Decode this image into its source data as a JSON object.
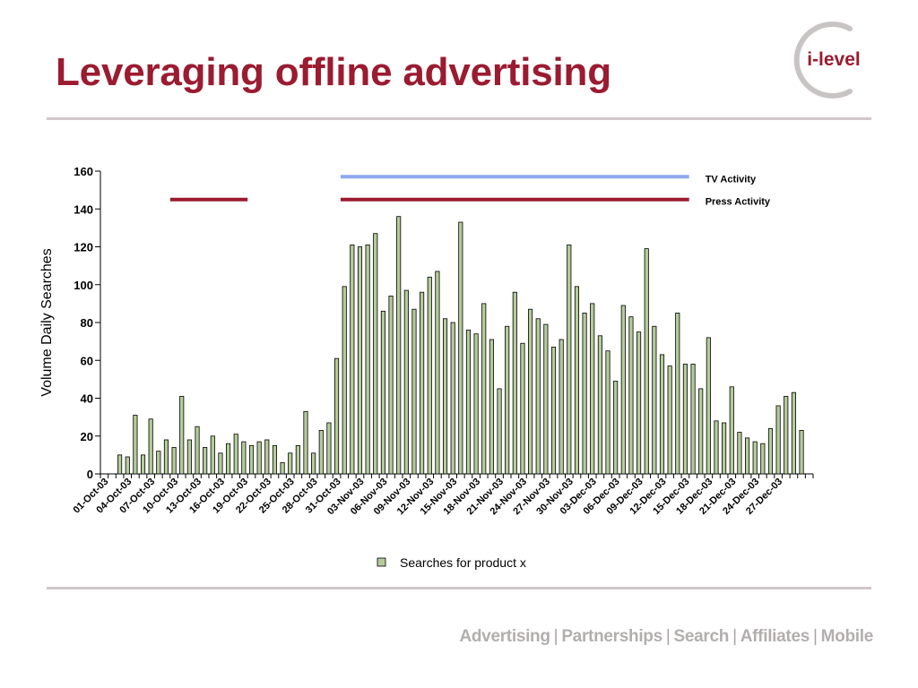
{
  "slide": {
    "title": "Leveraging offline advertising",
    "logo_text": "i-level",
    "footer": [
      "Advertising",
      "Partnerships",
      "Search",
      "Affiliates",
      "Mobile"
    ]
  },
  "colors": {
    "title": "#9b1b30",
    "bar_fill": "#b5cc9a",
    "tv_line": "#8fa8ef",
    "press_line": "#9b1b30",
    "rule": "#cfc7c9",
    "footer": "#b3aeae"
  },
  "chart_data": {
    "type": "bar",
    "title": "",
    "xlabel": "",
    "ylabel": "Volume Daily Searches",
    "ylim": [
      0,
      160
    ],
    "yticks": [
      0,
      20,
      40,
      60,
      80,
      100,
      120,
      140,
      160
    ],
    "grid": false,
    "legend_position": "bottom",
    "x_start": "01-Oct-03",
    "categories": [
      "01-Oct-03",
      "02-Oct-03",
      "03-Oct-03",
      "04-Oct-03",
      "05-Oct-03",
      "06-Oct-03",
      "07-Oct-03",
      "08-Oct-03",
      "09-Oct-03",
      "10-Oct-03",
      "11-Oct-03",
      "12-Oct-03",
      "13-Oct-03",
      "14-Oct-03",
      "15-Oct-03",
      "16-Oct-03",
      "17-Oct-03",
      "18-Oct-03",
      "19-Oct-03",
      "20-Oct-03",
      "21-Oct-03",
      "22-Oct-03",
      "23-Oct-03",
      "24-Oct-03",
      "25-Oct-03",
      "26-Oct-03",
      "27-Oct-03",
      "28-Oct-03",
      "29-Oct-03",
      "30-Oct-03",
      "31-Oct-03",
      "01-Nov-03",
      "02-Nov-03",
      "03-Nov-03",
      "04-Nov-03",
      "05-Nov-03",
      "06-Nov-03",
      "07-Nov-03",
      "08-Nov-03",
      "09-Nov-03",
      "10-Nov-03",
      "11-Nov-03",
      "12-Nov-03",
      "13-Nov-03",
      "14-Nov-03",
      "15-Nov-03",
      "16-Nov-03",
      "17-Nov-03",
      "18-Nov-03",
      "19-Nov-03",
      "20-Nov-03",
      "21-Nov-03",
      "22-Nov-03",
      "23-Nov-03",
      "24-Nov-03",
      "25-Nov-03",
      "26-Nov-03",
      "27-Nov-03",
      "28-Nov-03",
      "29-Nov-03",
      "30-Nov-03",
      "01-Dec-03",
      "02-Dec-03",
      "03-Dec-03",
      "04-Dec-03",
      "05-Dec-03",
      "06-Dec-03",
      "07-Dec-03",
      "08-Dec-03",
      "09-Dec-03",
      "10-Dec-03",
      "11-Dec-03",
      "12-Dec-03",
      "13-Dec-03",
      "14-Dec-03",
      "15-Dec-03",
      "16-Dec-03",
      "17-Dec-03",
      "18-Dec-03",
      "19-Dec-03",
      "20-Dec-03",
      "21-Dec-03",
      "22-Dec-03",
      "23-Dec-03",
      "24-Dec-03",
      "25-Dec-03",
      "26-Dec-03",
      "27-Dec-03",
      "28-Dec-03",
      "29-Dec-03",
      "30-Dec-03",
      "31-Dec-03"
    ],
    "xtick_labels": [
      "01-Oct-03",
      "04-Oct-03",
      "07-Oct-03",
      "10-Oct-03",
      "13-Oct-03",
      "16-Oct-03",
      "19-Oct-03",
      "22-Oct-03",
      "25-Oct-03",
      "28-Oct-03",
      "31-Oct-03",
      "03-Nov-03",
      "06-Nov-03",
      "09-Nov-03",
      "12-Nov-03",
      "15-Nov-03",
      "18-Nov-03",
      "21-Nov-03",
      "24-Nov-03",
      "27-Nov-03",
      "30-Nov-03",
      "03-Dec-03",
      "06-Dec-03",
      "09-Dec-03",
      "12-Dec-03",
      "15-Dec-03",
      "18-Dec-03",
      "21-Dec-03",
      "24-Dec-03",
      "27-Dec-03"
    ],
    "series": [
      {
        "name": "Searches for product x",
        "values": [
          0,
          0,
          10,
          9,
          31,
          10,
          29,
          12,
          18,
          14,
          41,
          18,
          25,
          14,
          20,
          11,
          16,
          21,
          17,
          15,
          17,
          18,
          15,
          6,
          11,
          15,
          33,
          11,
          23,
          27,
          61,
          99,
          121,
          120,
          121,
          127,
          86,
          94,
          136,
          97,
          87,
          96,
          104,
          107,
          82,
          80,
          133,
          76,
          74,
          90,
          71,
          45,
          78,
          96,
          69,
          87,
          82,
          79,
          67,
          71,
          121,
          99,
          85,
          90,
          73,
          65,
          49,
          89,
          83,
          75,
          119,
          78,
          63,
          57,
          85,
          58,
          58,
          45,
          72,
          28,
          27,
          46,
          22,
          19,
          17,
          16,
          24,
          36,
          41,
          43,
          23,
          0
        ]
      }
    ],
    "annotations": [
      {
        "label": "TV Activity",
        "x_start": "01-Nov-03",
        "x_end": "15-Dec-03",
        "y": 157
      },
      {
        "label": "Press Activity",
        "x_start": "01-Nov-03",
        "x_end": "15-Dec-03",
        "y": 145
      },
      {
        "label": "",
        "x_start": "10-Oct-03",
        "x_end": "19-Oct-03",
        "y": 145
      }
    ]
  }
}
